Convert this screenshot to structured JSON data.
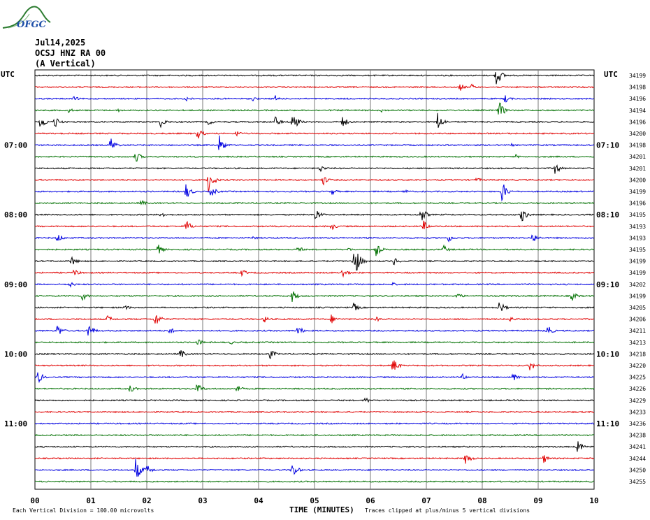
{
  "logo": {
    "text": "OFGC",
    "color": "#2e7d32",
    "text_color": "#1e4fa8"
  },
  "header": {
    "date": "Jul14,2025",
    "station": "OCSJ HNZ RA 00",
    "component": "(A Vertical)"
  },
  "left_tz": "UTC",
  "right_tz": "UTC",
  "colors": [
    "#000000",
    "#e00000",
    "#0000e0",
    "#007000"
  ],
  "chart_data": {
    "type": "seismogram",
    "xlabel": "TIME (MINUTES)",
    "x_ticks": [
      "00",
      "01",
      "02",
      "03",
      "04",
      "05",
      "06",
      "07",
      "08",
      "09",
      "10"
    ],
    "xlim": [
      0,
      10
    ],
    "left_hour_labels": [
      {
        "label": "07:00",
        "trace": 6
      },
      {
        "label": "08:00",
        "trace": 12
      },
      {
        "label": "09:00",
        "trace": 18
      },
      {
        "label": "10:00",
        "trace": 24
      },
      {
        "label": "11:00",
        "trace": 30
      }
    ],
    "right_hour_labels": [
      {
        "label": "07:10",
        "trace": 6
      },
      {
        "label": "08:10",
        "trace": 12
      },
      {
        "label": "09:10",
        "trace": 18
      },
      {
        "label": "10:10",
        "trace": 24
      },
      {
        "label": "11:10",
        "trace": 30
      }
    ],
    "right_values": [
      "34199",
      "34198",
      "34196",
      "34194",
      "34196",
      "34200",
      "34198",
      "34201",
      "34201",
      "34200",
      "34199",
      "34196",
      "34195",
      "34193",
      "34193",
      "34195",
      "34199",
      "34199",
      "34202",
      "34199",
      "34205",
      "34206",
      "34211",
      "34213",
      "34218",
      "34220",
      "34225",
      "34226",
      "34229",
      "34233",
      "34236",
      "34238",
      "34241",
      "34244",
      "34250",
      "34255"
    ],
    "scale_note": "Each Vertical Division =  100.00 microvolts",
    "clip_note": "Traces clipped at plus/minus 5 vertical divisions",
    "events": [
      [
        0,
        8.25,
        16
      ],
      [
        1,
        7.6,
        6
      ],
      [
        1,
        7.8,
        5
      ],
      [
        2,
        0.7,
        4
      ],
      [
        2,
        2.7,
        5
      ],
      [
        2,
        3.9,
        4
      ],
      [
        2,
        4.3,
        5
      ],
      [
        2,
        8.4,
        7
      ],
      [
        3,
        0.6,
        4
      ],
      [
        3,
        1.5,
        3
      ],
      [
        3,
        6.2,
        3
      ],
      [
        3,
        8.3,
        14
      ],
      [
        4,
        0.1,
        12
      ],
      [
        4,
        0.35,
        10
      ],
      [
        4,
        2.25,
        8
      ],
      [
        4,
        3.1,
        5
      ],
      [
        4,
        4.6,
        18
      ],
      [
        4,
        4.3,
        8
      ],
      [
        4,
        5.5,
        9
      ],
      [
        4,
        7.2,
        14
      ],
      [
        5,
        2.9,
        10
      ],
      [
        5,
        3.6,
        5
      ],
      [
        6,
        1.35,
        12
      ],
      [
        6,
        3.3,
        14
      ],
      [
        6,
        8.5,
        3
      ],
      [
        7,
        1.8,
        9
      ],
      [
        7,
        8.6,
        3
      ],
      [
        8,
        5.1,
        6
      ],
      [
        8,
        9.3,
        10
      ],
      [
        9,
        3.1,
        18
      ],
      [
        9,
        5.15,
        8
      ],
      [
        9,
        7.9,
        4
      ],
      [
        10,
        2.7,
        12
      ],
      [
        10,
        3.15,
        9
      ],
      [
        10,
        5.3,
        6
      ],
      [
        10,
        6.6,
        4
      ],
      [
        10,
        8.35,
        16
      ],
      [
        11,
        1.9,
        5
      ],
      [
        12,
        2.25,
        6
      ],
      [
        12,
        5.0,
        12
      ],
      [
        12,
        6.9,
        12
      ],
      [
        12,
        8.7,
        12
      ],
      [
        13,
        2.7,
        10
      ],
      [
        13,
        5.3,
        6
      ],
      [
        13,
        6.95,
        8
      ],
      [
        14,
        0.4,
        8
      ],
      [
        14,
        3.9,
        3
      ],
      [
        14,
        7.4,
        6
      ],
      [
        14,
        8.9,
        9
      ],
      [
        15,
        2.2,
        8
      ],
      [
        15,
        4.7,
        6
      ],
      [
        15,
        5.6,
        3
      ],
      [
        15,
        6.1,
        10
      ],
      [
        15,
        7.3,
        7
      ],
      [
        16,
        0.65,
        8
      ],
      [
        16,
        5.7,
        30
      ],
      [
        16,
        6.4,
        8
      ],
      [
        17,
        0.7,
        6
      ],
      [
        17,
        3.7,
        6
      ],
      [
        17,
        5.5,
        8
      ],
      [
        18,
        0.6,
        6
      ],
      [
        18,
        6.4,
        3
      ],
      [
        19,
        0.85,
        7
      ],
      [
        19,
        4.6,
        9
      ],
      [
        19,
        7.55,
        6
      ],
      [
        19,
        9.6,
        8
      ],
      [
        20,
        1.6,
        5
      ],
      [
        20,
        5.7,
        7
      ],
      [
        20,
        8.3,
        11
      ],
      [
        21,
        1.3,
        6
      ],
      [
        21,
        2.15,
        12
      ],
      [
        21,
        4.1,
        6
      ],
      [
        21,
        5.3,
        7
      ],
      [
        21,
        6.1,
        4
      ],
      [
        21,
        8.5,
        4
      ],
      [
        22,
        0.4,
        10
      ],
      [
        22,
        0.95,
        12
      ],
      [
        22,
        2.4,
        6
      ],
      [
        22,
        4.7,
        8
      ],
      [
        22,
        9.15,
        10
      ],
      [
        23,
        2.9,
        6
      ],
      [
        23,
        3.5,
        3
      ],
      [
        24,
        2.6,
        8
      ],
      [
        24,
        4.2,
        8
      ],
      [
        25,
        6.4,
        12
      ],
      [
        25,
        8.85,
        9
      ],
      [
        26,
        0.05,
        10
      ],
      [
        26,
        7.65,
        5
      ],
      [
        26,
        8.55,
        7
      ],
      [
        27,
        1.7,
        7
      ],
      [
        27,
        2.9,
        9
      ],
      [
        27,
        3.6,
        7
      ],
      [
        28,
        5.9,
        6
      ],
      [
        32,
        9.7,
        10
      ],
      [
        33,
        7.7,
        10
      ],
      [
        33,
        9.1,
        7
      ],
      [
        34,
        1.8,
        18
      ],
      [
        34,
        2.0,
        8
      ],
      [
        34,
        4.6,
        12
      ]
    ]
  }
}
